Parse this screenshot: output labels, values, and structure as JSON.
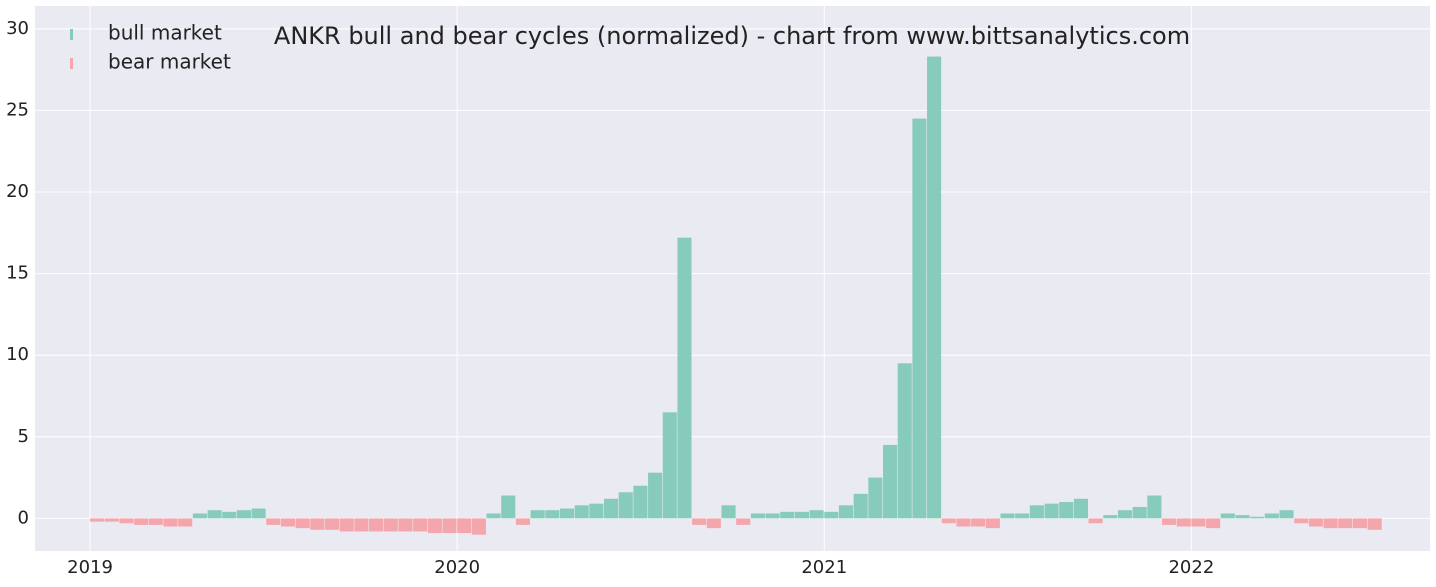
{
  "chart_data": {
    "type": "bar",
    "title": "ANKR bull and bear cycles (normalized)  - chart from www.bittsanalytics.com",
    "xlim": [
      2018.85,
      2022.65
    ],
    "xticks": [
      2019,
      2020,
      2021,
      2022
    ],
    "ylim": [
      -2,
      31.4
    ],
    "yticks": [
      0,
      5,
      10,
      15,
      20,
      25,
      30
    ],
    "grid": true,
    "legend": "upper left",
    "series": [
      {
        "name": "bull market",
        "color": "#86cbbb",
        "x": [
          2019.28,
          2019.32,
          2019.36,
          2019.4,
          2019.44,
          2020.08,
          2020.12,
          2020.2,
          2020.24,
          2020.28,
          2020.32,
          2020.36,
          2020.4,
          2020.44,
          2020.48,
          2020.52,
          2020.56,
          2020.6,
          2020.72,
          2020.8,
          2020.84,
          2020.88,
          2020.92,
          2020.96,
          2021.0,
          2021.04,
          2021.08,
          2021.12,
          2021.16,
          2021.2,
          2021.24,
          2021.28,
          2021.48,
          2021.52,
          2021.56,
          2021.6,
          2021.64,
          2021.68,
          2021.76,
          2021.8,
          2021.84,
          2021.88,
          2022.08,
          2022.12,
          2022.16,
          2022.2,
          2022.24
        ],
        "values": [
          0.3,
          0.5,
          0.4,
          0.5,
          0.6,
          0.3,
          1.4,
          0.5,
          0.5,
          0.6,
          0.8,
          0.9,
          1.2,
          1.6,
          2.0,
          2.8,
          6.5,
          17.2,
          0.8,
          0.3,
          0.3,
          0.4,
          0.4,
          0.5,
          0.4,
          0.8,
          1.5,
          2.5,
          4.5,
          9.5,
          24.5,
          28.3,
          0.3,
          0.3,
          0.8,
          0.9,
          1.0,
          1.2,
          0.2,
          0.5,
          0.7,
          1.4,
          0.3,
          0.2,
          0.1,
          0.3,
          0.5
        ]
      },
      {
        "name": "bear market",
        "color": "#f4a6ad",
        "x": [
          2019.0,
          2019.04,
          2019.08,
          2019.12,
          2019.16,
          2019.2,
          2019.24,
          2019.48,
          2019.52,
          2019.56,
          2019.6,
          2019.64,
          2019.68,
          2019.72,
          2019.76,
          2019.8,
          2019.84,
          2019.88,
          2019.92,
          2019.96,
          2020.0,
          2020.04,
          2020.16,
          2020.64,
          2020.68,
          2020.76,
          2021.32,
          2021.36,
          2021.4,
          2021.44,
          2021.72,
          2021.92,
          2021.96,
          2022.0,
          2022.04,
          2022.28,
          2022.32,
          2022.36,
          2022.4,
          2022.44,
          2022.48
        ],
        "values": [
          -0.2,
          -0.2,
          -0.3,
          -0.4,
          -0.4,
          -0.5,
          -0.5,
          -0.4,
          -0.5,
          -0.6,
          -0.7,
          -0.7,
          -0.8,
          -0.8,
          -0.8,
          -0.8,
          -0.8,
          -0.8,
          -0.9,
          -0.9,
          -0.9,
          -1.0,
          -0.4,
          -0.4,
          -0.6,
          -0.4,
          -0.3,
          -0.5,
          -0.5,
          -0.6,
          -0.3,
          -0.4,
          -0.5,
          -0.5,
          -0.6,
          -0.3,
          -0.5,
          -0.6,
          -0.6,
          -0.6,
          -0.7
        ]
      }
    ]
  }
}
